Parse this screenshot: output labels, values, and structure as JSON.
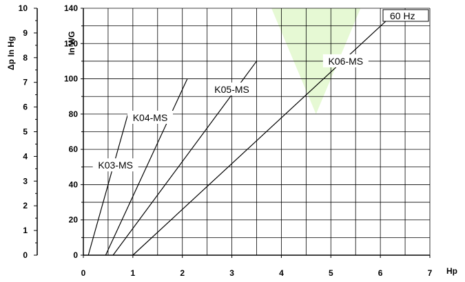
{
  "chart_data": {
    "type": "line",
    "title": "",
    "frequency_label": "60 Hz",
    "xlabel": "Hp",
    "ylabel": "In WG",
    "ylabel_secondary": "Δp  In Hg",
    "xlim": [
      0,
      7
    ],
    "ylim": [
      0,
      140
    ],
    "ylim_secondary": [
      0,
      10
    ],
    "x_ticks": [
      0,
      1,
      2,
      3,
      4,
      5,
      6,
      7
    ],
    "y_ticks": [
      0,
      20,
      40,
      60,
      80,
      100,
      120,
      140
    ],
    "y_ticks_secondary": [
      0,
      1,
      2,
      3,
      4,
      5,
      6,
      7,
      8,
      9,
      10
    ],
    "grid": true,
    "series": [
      {
        "name": "K03-MS",
        "x": [
          0.1,
          0.9
        ],
        "y": [
          0,
          80
        ]
      },
      {
        "name": "K04-MS",
        "x": [
          0.45,
          2.1
        ],
        "y": [
          0,
          100
        ]
      },
      {
        "name": "K05-MS",
        "x": [
          0.6,
          3.5
        ],
        "y": [
          0,
          110
        ]
      },
      {
        "name": "K06-MS",
        "x": [
          1.0,
          6.2
        ],
        "y": [
          0,
          135
        ]
      }
    ],
    "background_accent": "#c8f2a0",
    "line_color": "#000000"
  }
}
